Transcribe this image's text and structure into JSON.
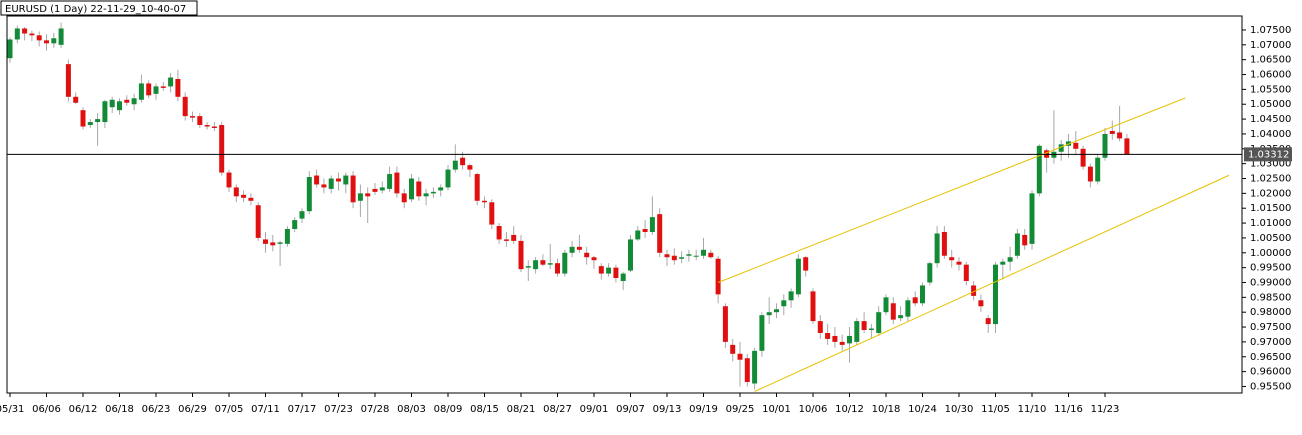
{
  "chart_data": {
    "type": "candlestick",
    "title": "EURUSD (1 Day) 22-11-29_10-40-07",
    "categories": [
      "05/31",
      null,
      null,
      null,
      null,
      "06/06",
      null,
      null,
      null,
      null,
      "06/12",
      null,
      null,
      null,
      null,
      "06/18",
      null,
      null,
      null,
      null,
      "06/23",
      null,
      null,
      null,
      null,
      "06/29",
      null,
      null,
      null,
      null,
      "07/05",
      null,
      null,
      null,
      null,
      "07/11",
      null,
      null,
      null,
      null,
      "07/17",
      null,
      null,
      null,
      null,
      "07/23",
      null,
      null,
      null,
      null,
      "07/28",
      null,
      null,
      null,
      null,
      "08/03",
      null,
      null,
      null,
      null,
      "08/09",
      null,
      null,
      null,
      null,
      "08/15",
      null,
      null,
      null,
      null,
      "08/21",
      null,
      null,
      null,
      null,
      "08/27",
      null,
      null,
      null,
      null,
      "09/01",
      null,
      null,
      null,
      null,
      "09/07",
      null,
      null,
      null,
      null,
      "09/13",
      null,
      null,
      null,
      null,
      "09/19",
      null,
      null,
      null,
      null,
      "09/25",
      null,
      null,
      null,
      null,
      "10/01",
      null,
      null,
      null,
      null,
      "10/06",
      null,
      null,
      null,
      null,
      "10/12",
      null,
      null,
      null,
      null,
      "10/18",
      null,
      null,
      null,
      null,
      "10/24",
      null,
      null,
      null,
      null,
      "10/30",
      null,
      null,
      null,
      null,
      "11/05",
      null,
      null,
      null,
      null,
      "11/10",
      null,
      null,
      null,
      null,
      "11/16",
      null,
      null,
      null,
      null,
      "11/23",
      null,
      null,
      null
    ],
    "ohlc": [
      [
        1.0655,
        1.0725,
        1.064,
        1.0718
      ],
      [
        1.0718,
        1.0765,
        1.0705,
        1.0755
      ],
      [
        1.0755,
        1.076,
        1.0715,
        1.0738
      ],
      [
        1.0738,
        1.0748,
        1.0712,
        1.0732
      ],
      [
        1.0732,
        1.0745,
        1.0695,
        1.0715
      ],
      [
        1.0715,
        1.0735,
        1.068,
        1.0705
      ],
      [
        1.0705,
        1.074,
        1.069,
        1.0722
      ],
      [
        1.07,
        1.0775,
        1.069,
        1.0755
      ],
      [
        1.0635,
        1.065,
        1.051,
        1.0525
      ],
      [
        1.0525,
        1.054,
        1.05,
        1.0505
      ],
      [
        1.048,
        1.049,
        1.0415,
        1.0425
      ],
      [
        1.043,
        1.045,
        1.042,
        1.044
      ],
      [
        1.044,
        1.047,
        1.036,
        1.045
      ],
      [
        1.044,
        1.0515,
        1.042,
        1.051
      ],
      [
        1.049,
        1.0525,
        1.047,
        1.0515
      ],
      [
        1.048,
        1.052,
        1.0465,
        1.051
      ],
      [
        1.0515,
        1.053,
        1.0495,
        1.0505
      ],
      [
        1.05,
        1.0535,
        1.048,
        1.052
      ],
      [
        1.0515,
        1.06,
        1.0505,
        1.057
      ],
      [
        1.057,
        1.058,
        1.052,
        1.053
      ],
      [
        1.0535,
        1.057,
        1.0515,
        1.056
      ],
      [
        1.056,
        1.0575,
        1.0545,
        1.0555
      ],
      [
        1.056,
        1.0605,
        1.054,
        1.059
      ],
      [
        1.0585,
        1.0615,
        1.051,
        1.0525
      ],
      [
        1.0525,
        1.054,
        1.0445,
        1.046
      ],
      [
        1.046,
        1.0475,
        1.044,
        1.0455
      ],
      [
        1.046,
        1.047,
        1.042,
        1.043
      ],
      [
        1.043,
        1.044,
        1.0415,
        1.0425
      ],
      [
        1.0425,
        1.044,
        1.041,
        1.042
      ],
      [
        1.043,
        1.044,
        1.026,
        1.027
      ],
      [
        1.027,
        1.028,
        1.0205,
        1.022
      ],
      [
        1.022,
        1.023,
        1.017,
        1.019
      ],
      [
        1.0195,
        1.021,
        1.017,
        1.0185
      ],
      [
        1.0185,
        1.02,
        1.016,
        1.0175
      ],
      [
        1.016,
        1.017,
        1.004,
        1.005
      ],
      [
        1.0045,
        1.007,
        1.0,
        1.003
      ],
      [
        1.0035,
        1.006,
        1.0005,
        1.0025
      ],
      [
        1.003,
        1.004,
        0.9955,
        1.0035
      ],
      [
        1.003,
        1.009,
        1.002,
        1.008
      ],
      [
        1.008,
        1.012,
        1.007,
        1.011
      ],
      [
        1.0115,
        1.015,
        1.01,
        1.014
      ],
      [
        1.014,
        1.0275,
        1.013,
        1.0255
      ],
      [
        1.026,
        1.028,
        1.022,
        1.023
      ],
      [
        1.023,
        1.025,
        1.02,
        1.022
      ],
      [
        1.0215,
        1.026,
        1.02,
        1.025
      ],
      [
        1.025,
        1.027,
        1.021,
        1.024
      ],
      [
        1.023,
        1.027,
        1.02,
        1.026
      ],
      [
        1.026,
        1.0275,
        1.015,
        1.017
      ],
      [
        1.0175,
        1.023,
        1.012,
        1.02
      ],
      [
        1.02,
        1.022,
        1.01,
        1.019
      ],
      [
        1.0215,
        1.0235,
        1.0195,
        1.0205
      ],
      [
        1.021,
        1.024,
        1.02,
        1.022
      ],
      [
        1.0215,
        1.029,
        1.0205,
        1.0265
      ],
      [
        1.027,
        1.029,
        1.0185,
        1.02
      ],
      [
        1.02,
        1.0215,
        1.015,
        1.017
      ],
      [
        1.018,
        1.0265,
        1.017,
        1.025
      ],
      [
        1.024,
        1.0255,
        1.0175,
        1.019
      ],
      [
        1.019,
        1.0215,
        1.016,
        1.02
      ],
      [
        1.02,
        1.022,
        1.0185,
        1.0205
      ],
      [
        1.021,
        1.023,
        1.019,
        1.022
      ],
      [
        1.022,
        1.0295,
        1.021,
        1.028
      ],
      [
        1.028,
        1.0365,
        1.027,
        1.031
      ],
      [
        1.032,
        1.034,
        1.028,
        1.0295
      ],
      [
        1.0295,
        1.03,
        1.0255,
        1.028
      ],
      [
        1.0265,
        1.027,
        1.016,
        1.0175
      ],
      [
        1.0175,
        1.019,
        1.015,
        1.017
      ],
      [
        1.017,
        1.018,
        1.008,
        1.0095
      ],
      [
        1.009,
        1.01,
        1.003,
        1.0045
      ],
      [
        1.0045,
        1.007,
        1.002,
        1.004
      ],
      [
        1.006,
        1.009,
        1.003,
        1.004
      ],
      [
        1.004,
        1.006,
        0.9935,
        0.9945
      ],
      [
        0.995,
        0.9975,
        0.9905,
        0.9955
      ],
      [
        0.9945,
        0.9985,
        0.993,
        0.9975
      ],
      [
        0.9975,
        0.9995,
        0.9955,
        0.996
      ],
      [
        0.996,
        1.003,
        0.9945,
        0.9965
      ],
      [
        0.9965,
        0.998,
        0.992,
        0.993
      ],
      [
        0.993,
        1.001,
        0.992,
        1.0
      ],
      [
        1.0,
        1.004,
        0.9985,
        1.002
      ],
      [
        1.002,
        1.006,
        1.0,
        1.001
      ],
      [
        1.0,
        1.002,
        0.996,
        0.9985
      ],
      [
        0.9985,
        0.999,
        0.9945,
        0.9975
      ],
      [
        0.9955,
        0.9965,
        0.991,
        0.993
      ],
      [
        0.993,
        0.9965,
        0.992,
        0.995
      ],
      [
        0.995,
        0.996,
        0.99,
        0.9915
      ],
      [
        0.9905,
        0.9935,
        0.9875,
        0.993
      ],
      [
        0.994,
        1.006,
        0.9935,
        1.0045
      ],
      [
        1.0045,
        1.009,
        1.004,
        1.0075
      ],
      [
        1.008,
        1.011,
        1.005,
        1.007
      ],
      [
        1.007,
        1.019,
        1.006,
        1.012
      ],
      [
        1.013,
        1.015,
        0.9985,
        1.0
      ],
      [
        0.9995,
        1.001,
        0.9955,
        0.9985
      ],
      [
        0.999,
        1.0015,
        0.996,
        0.9975
      ],
      [
        0.998,
        1.0005,
        0.9965,
        0.9985
      ],
      [
        0.999,
        1.001,
        0.997,
        0.9995
      ],
      [
        0.999,
        1.001,
        0.9975,
        0.999
      ],
      [
        0.999,
        1.005,
        0.998,
        1.001
      ],
      [
        1.0,
        1.001,
        0.998,
        0.9985
      ],
      [
        0.998,
        0.999,
        0.983,
        0.986
      ],
      [
        0.982,
        0.983,
        0.968,
        0.97
      ],
      [
        0.969,
        0.971,
        0.9635,
        0.966
      ],
      [
        0.966,
        0.97,
        0.955,
        0.964
      ],
      [
        0.9645,
        0.966,
        0.955,
        0.9565
      ],
      [
        0.956,
        0.968,
        0.954,
        0.967
      ],
      [
        0.967,
        0.98,
        0.965,
        0.979
      ],
      [
        0.979,
        0.985,
        0.976,
        0.98
      ],
      [
        0.98,
        0.983,
        0.978,
        0.981
      ],
      [
        0.982,
        0.986,
        0.979,
        0.984
      ],
      [
        0.984,
        0.988,
        0.9815,
        0.987
      ],
      [
        0.986,
        0.9995,
        0.985,
        0.998
      ],
      [
        0.9985,
        0.999,
        0.992,
        0.994
      ],
      [
        0.987,
        0.988,
        0.976,
        0.977
      ],
      [
        0.977,
        0.979,
        0.971,
        0.973
      ],
      [
        0.973,
        0.976,
        0.969,
        0.971
      ],
      [
        0.972,
        0.975,
        0.968,
        0.97
      ],
      [
        0.97,
        0.9725,
        0.967,
        0.969
      ],
      [
        0.9695,
        0.975,
        0.963,
        0.972
      ],
      [
        0.97,
        0.978,
        0.969,
        0.977
      ],
      [
        0.977,
        0.98,
        0.973,
        0.974
      ],
      [
        0.974,
        0.976,
        0.971,
        0.9745
      ],
      [
        0.973,
        0.982,
        0.972,
        0.98
      ],
      [
        0.98,
        0.986,
        0.979,
        0.985
      ],
      [
        0.983,
        0.985,
        0.976,
        0.9775
      ],
      [
        0.978,
        0.982,
        0.977,
        0.979
      ],
      [
        0.9785,
        0.985,
        0.977,
        0.984
      ],
      [
        0.985,
        0.987,
        0.982,
        0.983
      ],
      [
        0.983,
        0.99,
        0.982,
        0.989
      ],
      [
        0.99,
        0.997,
        0.989,
        0.9965
      ],
      [
        0.9965,
        1.009,
        0.995,
        1.0065
      ],
      [
        1.007,
        1.009,
        0.998,
        0.999
      ],
      [
        0.9985,
        1.001,
        0.995,
        0.9975
      ],
      [
        0.997,
        0.9985,
        0.994,
        0.996
      ],
      [
        0.996,
        0.997,
        0.989,
        0.9905
      ],
      [
        0.989,
        0.9905,
        0.984,
        0.9855
      ],
      [
        0.984,
        0.986,
        0.98,
        0.982
      ],
      [
        0.978,
        0.979,
        0.973,
        0.976
      ],
      [
        0.976,
        0.997,
        0.973,
        0.996
      ],
      [
        0.996,
        0.998,
        0.991,
        0.997
      ],
      [
        0.997,
        1.002,
        0.994,
        0.9985
      ],
      [
        0.999,
        1.008,
        0.998,
        1.0065
      ],
      [
        1.006,
        1.008,
        1.001,
        1.0025
      ],
      [
        1.003,
        1.021,
        1.001,
        1.02
      ],
      [
        1.02,
        1.0365,
        1.019,
        1.036
      ],
      [
        1.0345,
        1.035,
        1.027,
        1.032
      ],
      [
        1.032,
        1.048,
        1.03,
        1.034
      ],
      [
        1.034,
        1.038,
        1.031,
        1.0365
      ],
      [
        1.036,
        1.04,
        1.032,
        1.0375
      ],
      [
        1.037,
        1.041,
        1.033,
        1.035
      ],
      [
        1.035,
        1.036,
        1.028,
        1.029
      ],
      [
        1.029,
        1.03,
        1.022,
        1.024
      ],
      [
        1.024,
        1.033,
        1.023,
        1.032
      ],
      [
        1.032,
        1.042,
        1.031,
        1.04
      ],
      [
        1.041,
        1.0445,
        1.038,
        1.04
      ],
      [
        1.0405,
        1.0495,
        1.0375,
        1.0385
      ],
      [
        1.0385,
        1.04,
        1.033,
        1.03312
      ]
    ],
    "up_color": "#138a36",
    "down_color": "#e01010",
    "wick_color": "#a8a8a8",
    "ylim": [
      0.9528,
      1.0797
    ],
    "yticks": [
      {
        "value": 0.955,
        "label": "0.95500"
      },
      {
        "value": 0.96,
        "label": "0.96000"
      },
      {
        "value": 0.965,
        "label": "0.96500"
      },
      {
        "value": 0.97,
        "label": "0.97000"
      },
      {
        "value": 0.975,
        "label": "0.97500"
      },
      {
        "value": 0.98,
        "label": "0.98000"
      },
      {
        "value": 0.985,
        "label": "0.98500"
      },
      {
        "value": 0.99,
        "label": "0.99000"
      },
      {
        "value": 0.995,
        "label": "0.99500"
      },
      {
        "value": 1.0,
        "label": "1.00000"
      },
      {
        "value": 1.005,
        "label": "1.00500"
      },
      {
        "value": 1.01,
        "label": "1.01000"
      },
      {
        "value": 1.015,
        "label": "1.01500"
      },
      {
        "value": 1.02,
        "label": "1.02000"
      },
      {
        "value": 1.025,
        "label": "1.02500"
      },
      {
        "value": 1.03,
        "label": "1.03000"
      },
      {
        "value": 1.035,
        "label": "1.03500"
      },
      {
        "value": 1.04,
        "label": "1.04000"
      },
      {
        "value": 1.045,
        "label": "1.04500"
      },
      {
        "value": 1.05,
        "label": "1.05000"
      },
      {
        "value": 1.055,
        "label": "1.05500"
      },
      {
        "value": 1.06,
        "label": "1.06000"
      },
      {
        "value": 1.065,
        "label": "1.06500"
      },
      {
        "value": 1.07,
        "label": "1.07000"
      },
      {
        "value": 1.075,
        "label": "1.07500"
      }
    ],
    "hline": 1.03312,
    "hline_color": "#000000",
    "channel": [
      {
        "x": [
          97,
          161
        ],
        "y": [
          0.99,
          1.0521
        ]
      },
      {
        "x": [
          102,
          167
        ],
        "y": [
          0.9533,
          1.0261
        ]
      }
    ],
    "channel_color": "#e6c200"
  }
}
